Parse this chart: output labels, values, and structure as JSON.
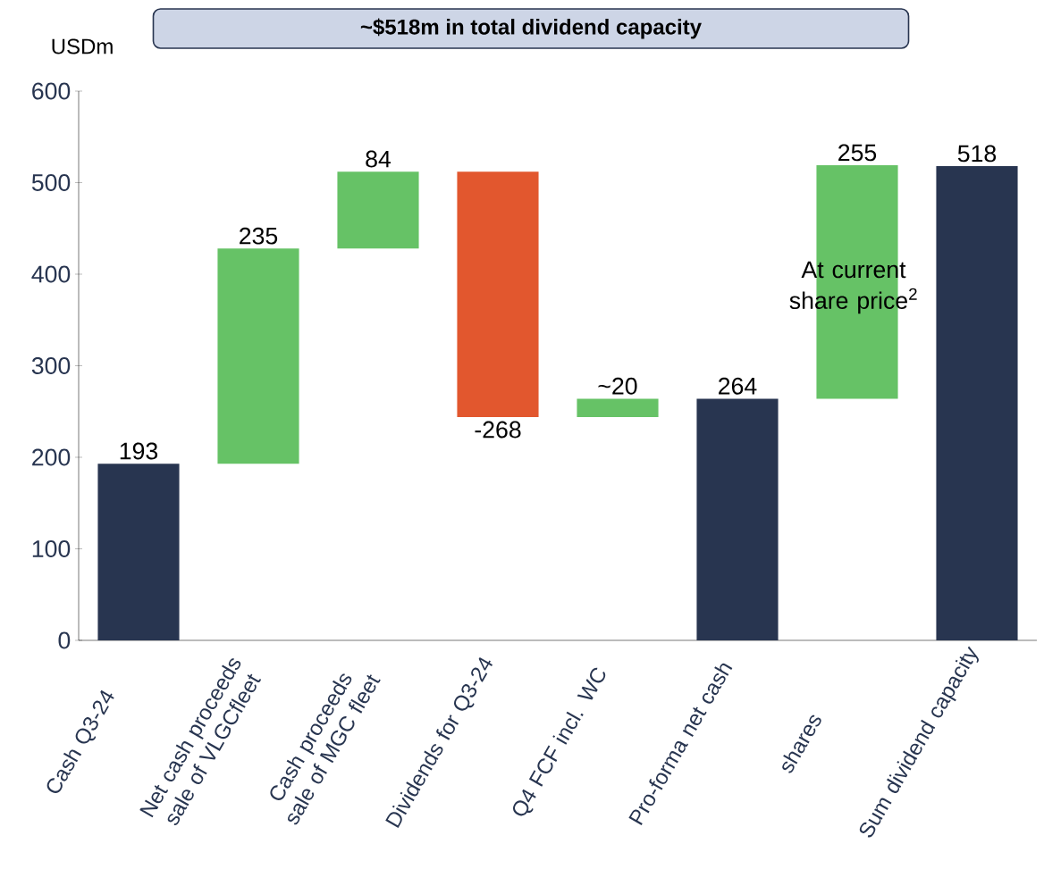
{
  "chart_data": {
    "type": "bar",
    "title": "~$518m in total dividend capacity",
    "ylabel": "USDm",
    "categories": [
      "Cash Q3-24",
      "Net cash proceeds sale of VLGCfleet",
      "Cash proceeds sale of MGC fleet",
      "Dividends for Q3-24",
      "Q4 FCF incl. WC",
      "Pro-forma net cash",
      "shares",
      "Sum dividend capacity"
    ],
    "values": [
      193,
      235,
      84,
      -268,
      20,
      264,
      255,
      518
    ],
    "base": [
      0,
      193,
      428,
      512,
      244,
      0,
      264,
      0
    ],
    "colors": [
      "#283550",
      "#66c266",
      "#66c266",
      "#e2572e",
      "#66c266",
      "#283550",
      "#66c266",
      "#283550"
    ],
    "value_labels": [
      "193",
      "235",
      "84",
      "-268",
      "~20",
      "264",
      "255",
      "518"
    ],
    "ylim": [
      0,
      600
    ],
    "yticks": [
      0,
      100,
      200,
      300,
      400,
      500,
      600
    ],
    "grid": false,
    "annotations": [
      "At current share price$^{2}$"
    ]
  }
}
